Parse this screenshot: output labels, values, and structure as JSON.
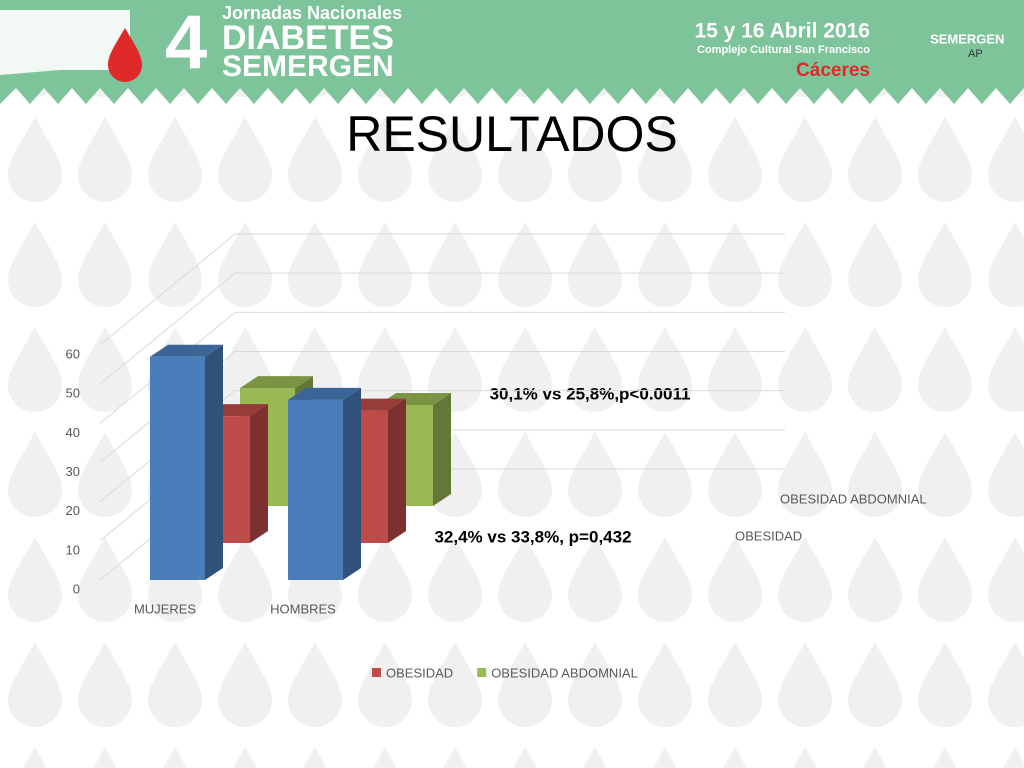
{
  "header": {
    "edition": "4",
    "subtitle": "Jornadas Nacionales",
    "line1": "DIABETES",
    "line2": "SEMERGEN",
    "date": "15 y 16 Abril 2016",
    "venue": "Complejo Cultural San Francisco",
    "city": "Cáceres",
    "logo": "SEMERGEN",
    "logo_sub": "AP"
  },
  "chart_data": {
    "type": "bar3d",
    "title": "RESULTADOS",
    "categories": [
      "MUJERES",
      "HOMBRES"
    ],
    "series": [
      {
        "color": "#4a7ebb",
        "values": [
          57,
          46
        ]
      },
      {
        "name": "OBESIDAD",
        "color": "#be4b48",
        "values": [
          32.4,
          33.8
        ]
      },
      {
        "name": "OBESIDAD ABDOMNIAL",
        "color": "#98b954",
        "values": [
          30.1,
          25.8
        ]
      }
    ],
    "ylim": [
      0,
      60
    ],
    "yticks": [
      0,
      10,
      20,
      30,
      40,
      50,
      60
    ],
    "grid": true,
    "legend": "bottom",
    "annotations": [
      "30,1% vs 25,8%,p<0.0011",
      "32,4% vs 33,8%, p=0,432"
    ]
  }
}
